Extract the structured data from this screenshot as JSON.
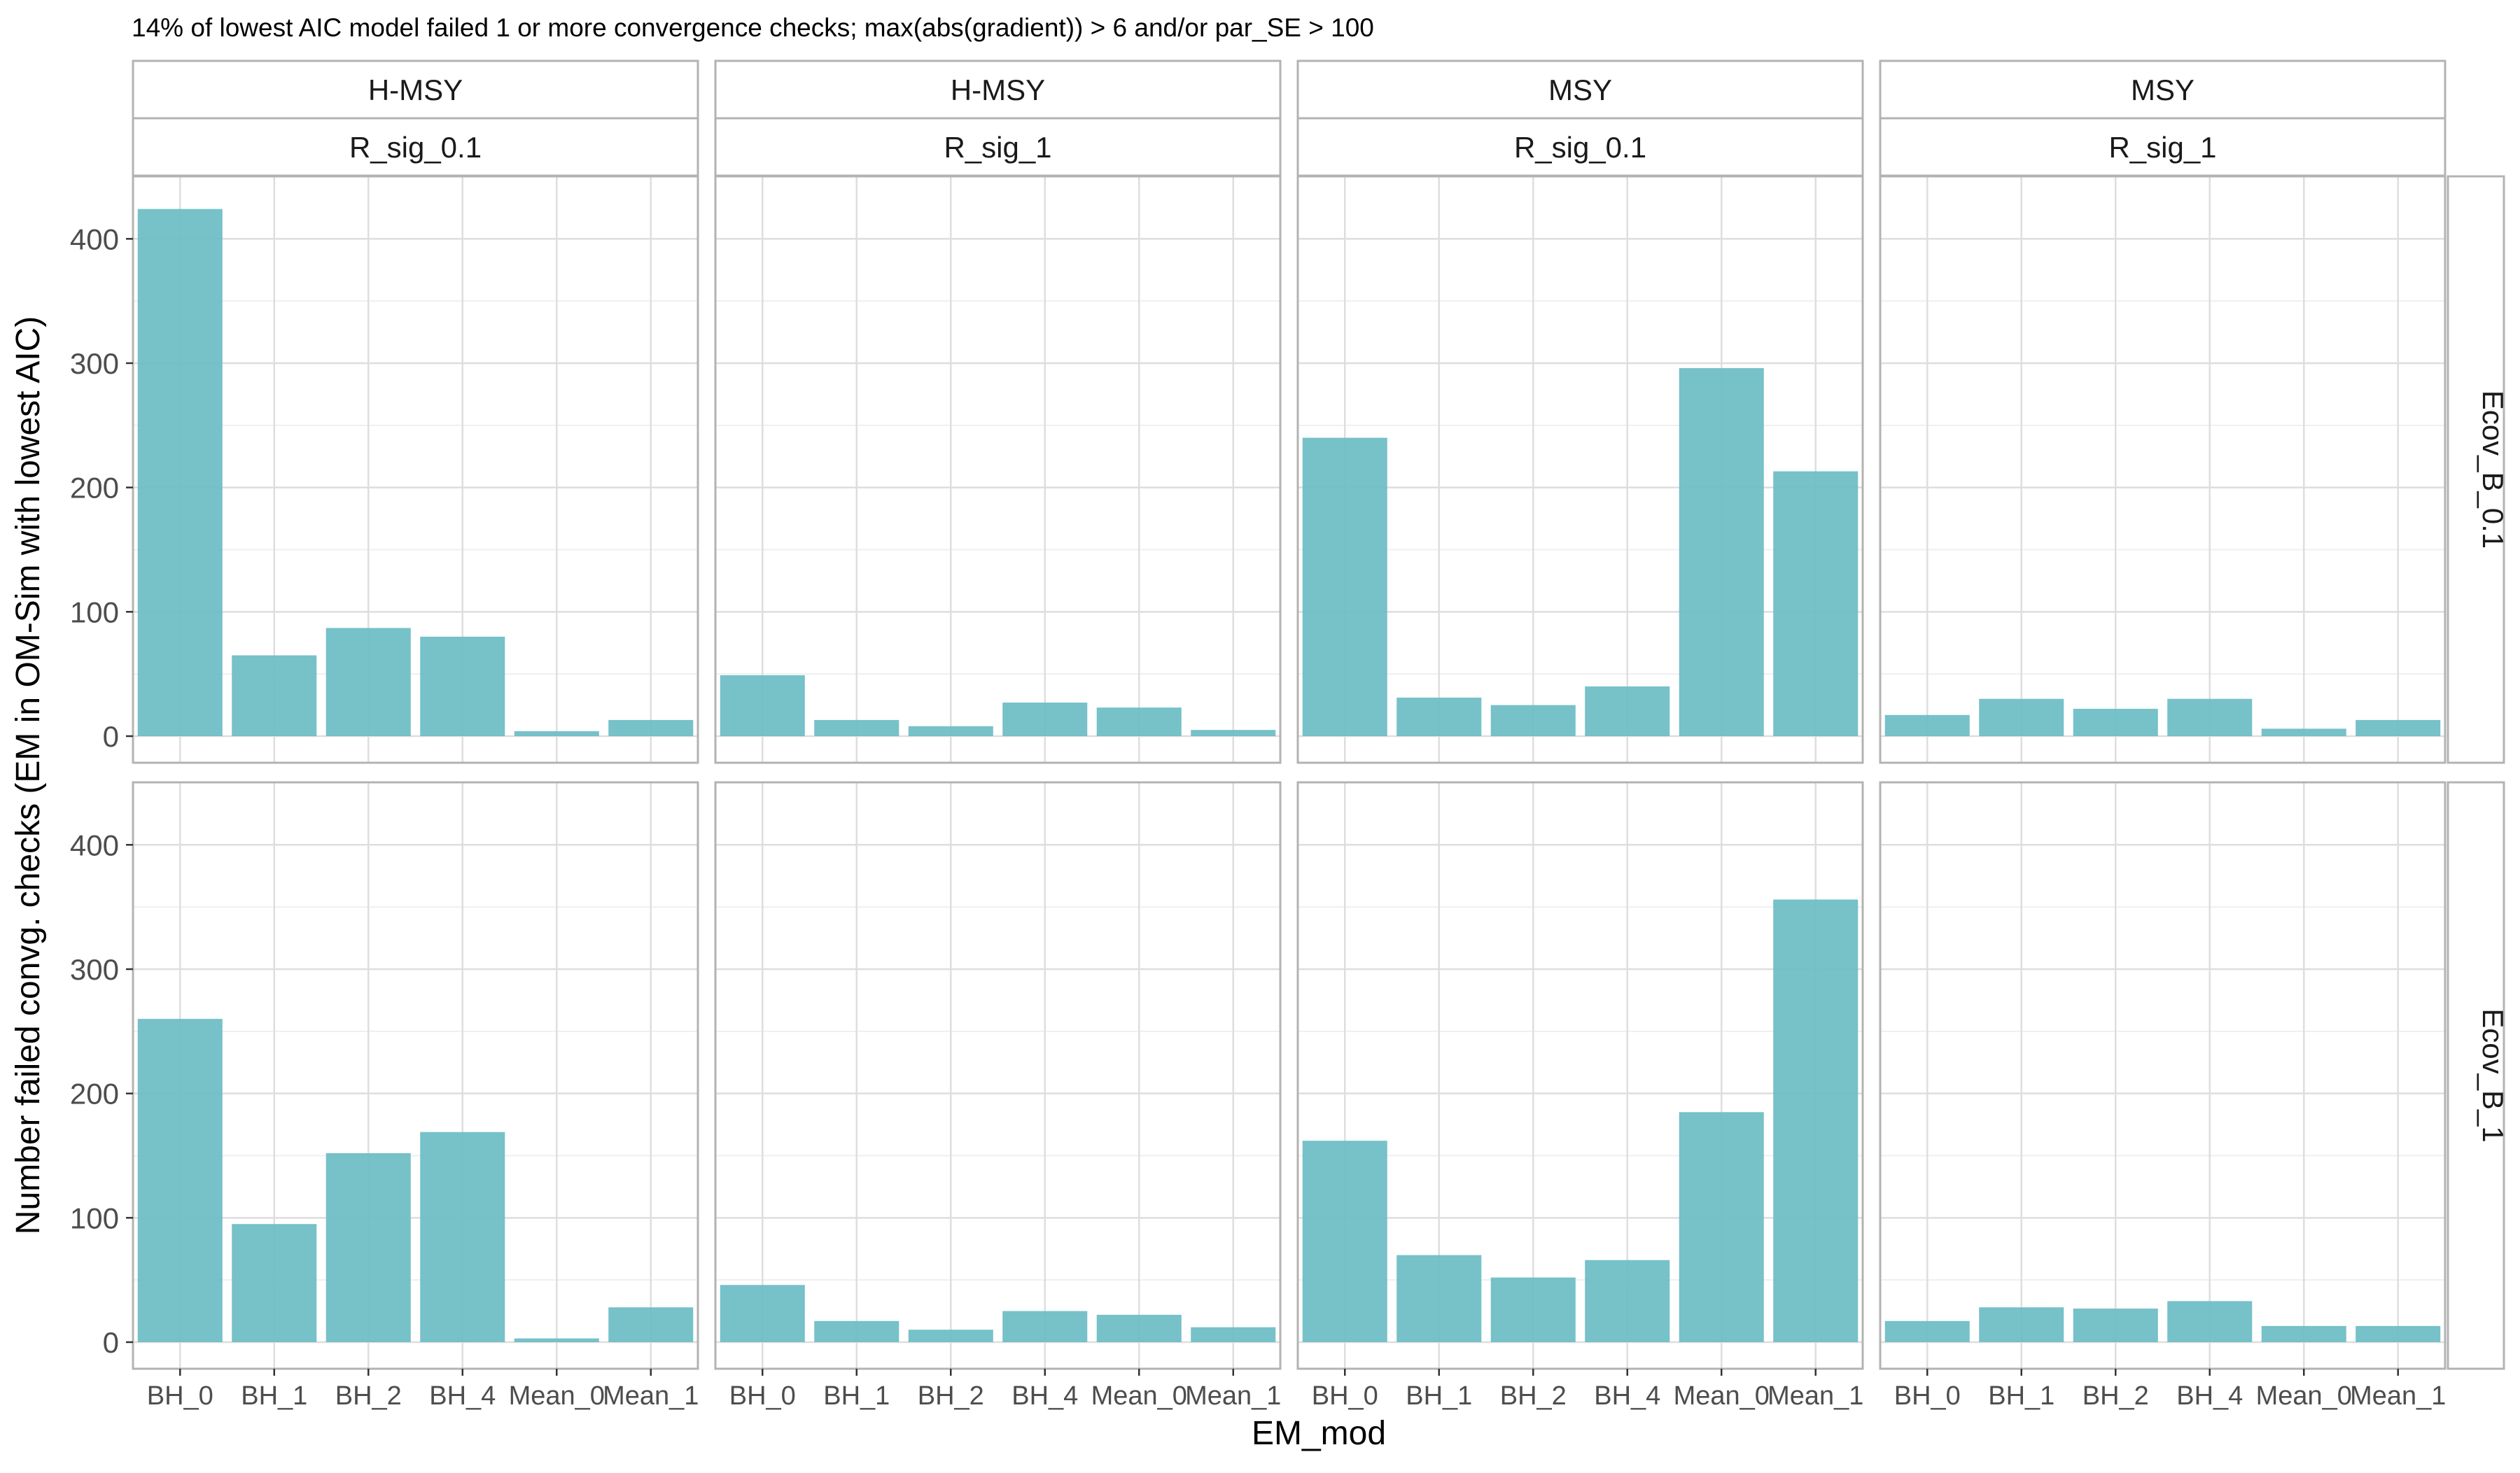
{
  "chart_data": {
    "type": "bar",
    "title": "14% of lowest AIC model failed 1 or more convergence checks; max(abs(gradient)) > 6 and/or par_SE > 100",
    "xlabel": "EM_mod",
    "ylabel": "Number failed convg. checks (EM in OM-Sim with lowest AIC)",
    "categories": [
      "BH_0",
      "BH_1",
      "BH_2",
      "BH_4",
      "Mean_0",
      "Mean_1"
    ],
    "ylim": [
      0,
      430
    ],
    "yticks": [
      0,
      100,
      200,
      300,
      400
    ],
    "grid": true,
    "bar_color": "#6BBCC4",
    "strip_color": "#ffffff",
    "columns": [
      {
        "top": "H-MSY",
        "sub": "R_sig_0.1"
      },
      {
        "top": "H-MSY",
        "sub": "R_sig_1"
      },
      {
        "top": "MSY",
        "sub": "R_sig_0.1"
      },
      {
        "top": "MSY",
        "sub": "R_sig_1"
      }
    ],
    "rows": [
      "Ecov_B_0.1",
      "Ecov_B_1"
    ],
    "panels": [
      [
        [
          424,
          65,
          87,
          80,
          4,
          13
        ],
        [
          49,
          13,
          8,
          27,
          23,
          5
        ],
        [
          240,
          31,
          25,
          40,
          296,
          213
        ],
        [
          17,
          30,
          22,
          30,
          6,
          13
        ]
      ],
      [
        [
          260,
          95,
          152,
          169,
          3,
          28
        ],
        [
          46,
          17,
          10,
          25,
          22,
          12
        ],
        [
          162,
          70,
          52,
          66,
          185,
          356
        ],
        [
          17,
          28,
          27,
          33,
          13,
          13
        ]
      ]
    ]
  }
}
